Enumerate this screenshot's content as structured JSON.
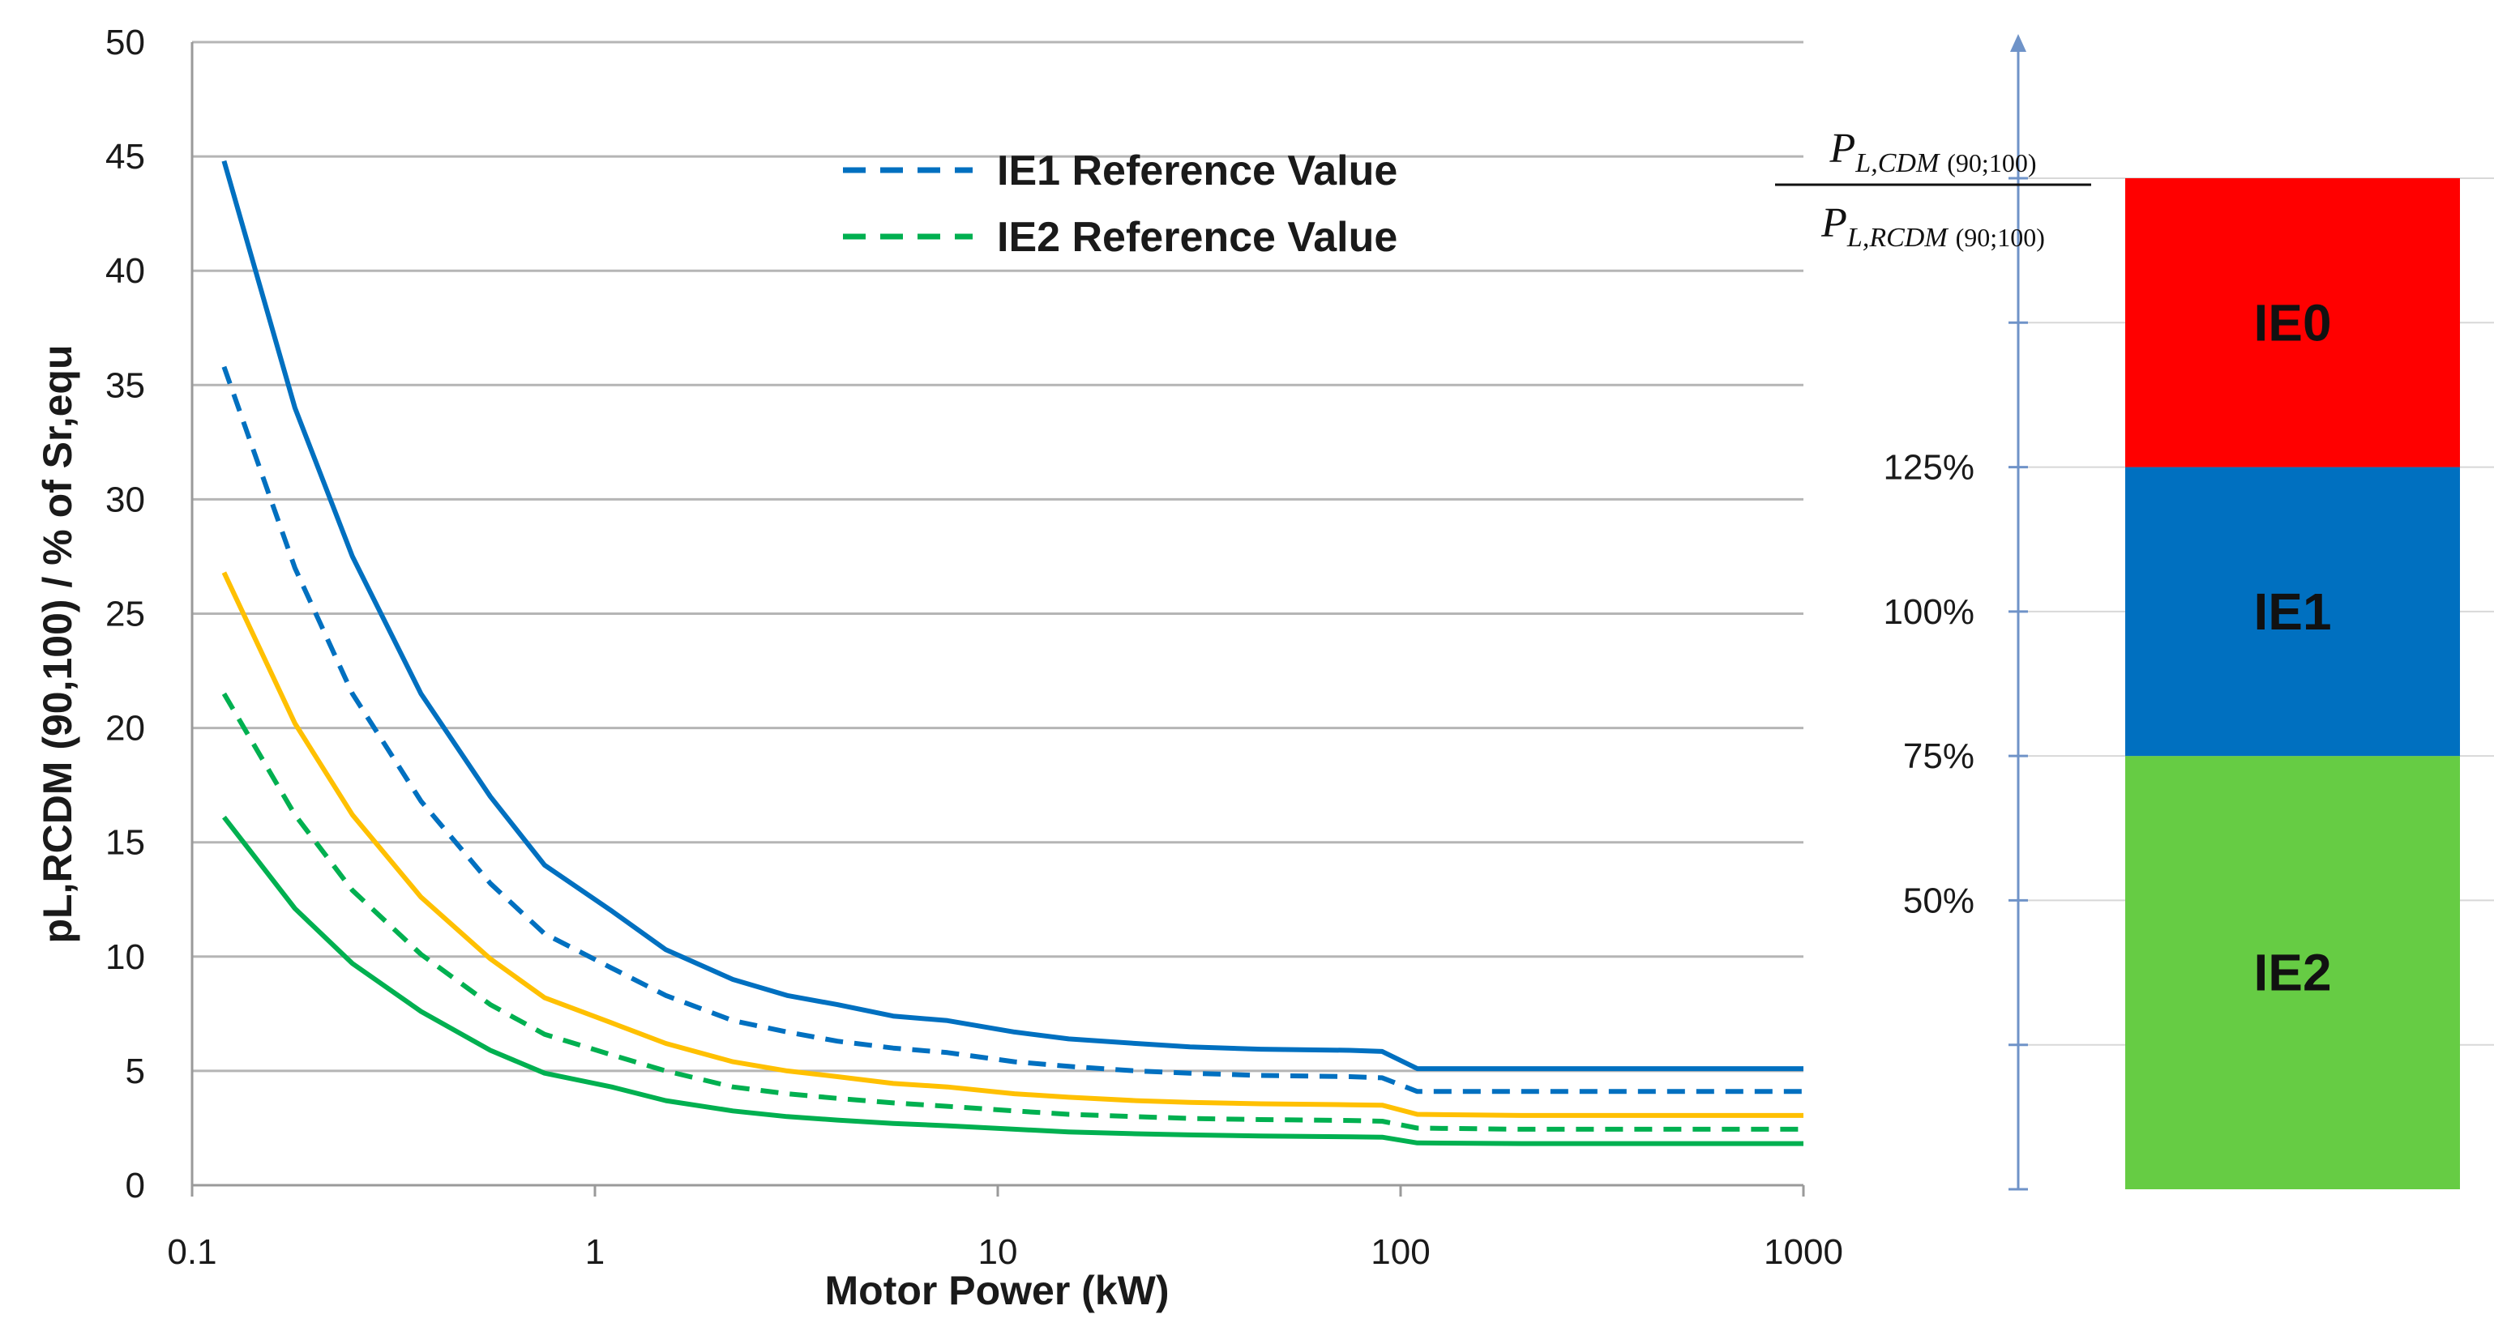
{
  "chart_data": [
    {
      "type": "line",
      "title": "",
      "xlabel": "Motor Power (kW)",
      "ylabel": "pL,RCDM (90,100) / % of  Sr,equ",
      "xscale": "log",
      "xlim": [
        0.1,
        1000
      ],
      "ylim": [
        0,
        50
      ],
      "x_ticks": [
        "0.1",
        "1",
        "10",
        "100",
        "1000"
      ],
      "y_ticks": [
        "0",
        "5",
        "10",
        "15",
        "20",
        "25",
        "30",
        "35",
        "40",
        "45",
        "50"
      ],
      "grid": "horizontal",
      "legend_position": "top-center",
      "legend": [
        {
          "label": "IE1 Reference Value",
          "style": "dashed",
          "color": "#0070C0"
        },
        {
          "label": "IE2 Reference Value",
          "style": "dashed",
          "color": "#00B050"
        }
      ],
      "series": [
        {
          "style": "solid",
          "color": "#0070C0",
          "points": [
            [
              0.12,
              44.8
            ],
            [
              0.18,
              34.0
            ],
            [
              0.25,
              27.5
            ],
            [
              0.37,
              21.5
            ],
            [
              0.55,
              17.0
            ],
            [
              0.75,
              14.0
            ],
            [
              1.1,
              12.0
            ],
            [
              1.5,
              10.3
            ],
            [
              2.2,
              9.0
            ],
            [
              3.0,
              8.3
            ],
            [
              4.0,
              7.9
            ],
            [
              5.5,
              7.4
            ],
            [
              7.5,
              7.2
            ],
            [
              11,
              6.7
            ],
            [
              15,
              6.4
            ],
            [
              22,
              6.2
            ],
            [
              30,
              6.05
            ],
            [
              45,
              5.95
            ],
            [
              75,
              5.9
            ],
            [
              90,
              5.85
            ],
            [
              110,
              5.1
            ],
            [
              200,
              5.1
            ],
            [
              315,
              5.1
            ],
            [
              500,
              5.1
            ],
            [
              1000,
              5.1
            ]
          ]
        },
        {
          "style": "dashed",
          "color": "#0070C0",
          "points": [
            [
              0.12,
              35.8
            ],
            [
              0.18,
              27.0
            ],
            [
              0.25,
              21.5
            ],
            [
              0.37,
              16.8
            ],
            [
              0.55,
              13.2
            ],
            [
              0.75,
              11.0
            ],
            [
              1.1,
              9.5
            ],
            [
              1.5,
              8.3
            ],
            [
              2.2,
              7.2
            ],
            [
              3.0,
              6.7
            ],
            [
              4.0,
              6.3
            ],
            [
              5.5,
              6.0
            ],
            [
              7.5,
              5.8
            ],
            [
              11,
              5.4
            ],
            [
              15,
              5.2
            ],
            [
              22,
              5.0
            ],
            [
              30,
              4.9
            ],
            [
              45,
              4.8
            ],
            [
              75,
              4.75
            ],
            [
              90,
              4.7
            ],
            [
              110,
              4.1
            ],
            [
              200,
              4.1
            ],
            [
              315,
              4.1
            ],
            [
              500,
              4.1
            ],
            [
              1000,
              4.1
            ]
          ]
        },
        {
          "style": "solid",
          "color": "#FFC000",
          "points": [
            [
              0.12,
              26.8
            ],
            [
              0.18,
              20.2
            ],
            [
              0.25,
              16.2
            ],
            [
              0.37,
              12.6
            ],
            [
              0.55,
              9.9
            ],
            [
              0.75,
              8.2
            ],
            [
              1.1,
              7.1
            ],
            [
              1.5,
              6.2
            ],
            [
              2.2,
              5.4
            ],
            [
              3.0,
              5.0
            ],
            [
              4.0,
              4.75
            ],
            [
              5.5,
              4.45
            ],
            [
              7.5,
              4.3
            ],
            [
              11,
              4.0
            ],
            [
              15,
              3.85
            ],
            [
              22,
              3.7
            ],
            [
              30,
              3.62
            ],
            [
              45,
              3.56
            ],
            [
              75,
              3.52
            ],
            [
              90,
              3.5
            ],
            [
              110,
              3.1
            ],
            [
              200,
              3.05
            ],
            [
              315,
              3.05
            ],
            [
              500,
              3.05
            ],
            [
              1000,
              3.05
            ]
          ]
        },
        {
          "style": "dashed",
          "color": "#00B050",
          "points": [
            [
              0.12,
              21.5
            ],
            [
              0.18,
              16.2
            ],
            [
              0.25,
              12.9
            ],
            [
              0.37,
              10.1
            ],
            [
              0.55,
              7.9
            ],
            [
              0.75,
              6.6
            ],
            [
              1.1,
              5.7
            ],
            [
              1.5,
              5.0
            ],
            [
              2.2,
              4.3
            ],
            [
              3.0,
              4.0
            ],
            [
              4.0,
              3.8
            ],
            [
              5.5,
              3.6
            ],
            [
              7.5,
              3.45
            ],
            [
              11,
              3.25
            ],
            [
              15,
              3.1
            ],
            [
              22,
              3.0
            ],
            [
              30,
              2.92
            ],
            [
              45,
              2.87
            ],
            [
              75,
              2.83
            ],
            [
              90,
              2.8
            ],
            [
              110,
              2.5
            ],
            [
              200,
              2.45
            ],
            [
              315,
              2.45
            ],
            [
              500,
              2.45
            ],
            [
              1000,
              2.45
            ]
          ]
        },
        {
          "style": "solid",
          "color": "#00B050",
          "points": [
            [
              0.12,
              16.1
            ],
            [
              0.18,
              12.1
            ],
            [
              0.25,
              9.7
            ],
            [
              0.37,
              7.6
            ],
            [
              0.55,
              5.9
            ],
            [
              0.75,
              4.9
            ],
            [
              1.1,
              4.3
            ],
            [
              1.5,
              3.7
            ],
            [
              2.2,
              3.25
            ],
            [
              3.0,
              3.0
            ],
            [
              4.0,
              2.85
            ],
            [
              5.5,
              2.7
            ],
            [
              7.5,
              2.6
            ],
            [
              11,
              2.45
            ],
            [
              15,
              2.33
            ],
            [
              22,
              2.25
            ],
            [
              30,
              2.2
            ],
            [
              45,
              2.15
            ],
            [
              75,
              2.12
            ],
            [
              90,
              2.1
            ],
            [
              110,
              1.85
            ],
            [
              200,
              1.82
            ],
            [
              315,
              1.82
            ],
            [
              500,
              1.82
            ],
            [
              1000,
              1.82
            ]
          ]
        }
      ]
    },
    {
      "type": "bar",
      "title": "",
      "ylabel": {
        "numerator": {
          "main": "P",
          "sub": "L,CDM",
          "arg": "(90;100)"
        },
        "denominator": {
          "main": "P",
          "sub": "L,RCDM",
          "arg": "(90;100)"
        }
      },
      "ylim": [
        0,
        175
      ],
      "y_ticks": [
        "50%",
        "75%",
        "100%",
        "125%"
      ],
      "y_tick_values": [
        50,
        75,
        100,
        125
      ],
      "minor_tick_values": [
        25,
        150
      ],
      "grid": "horizontal",
      "bands": [
        {
          "label": "IE2",
          "from": 0,
          "to": 75,
          "color": "#66CC44"
        },
        {
          "label": "IE1",
          "from": 75,
          "to": 125,
          "color": "#0070C0"
        },
        {
          "label": "IE0",
          "from": 125,
          "to": 175,
          "color": "#FF0000"
        }
      ]
    }
  ]
}
